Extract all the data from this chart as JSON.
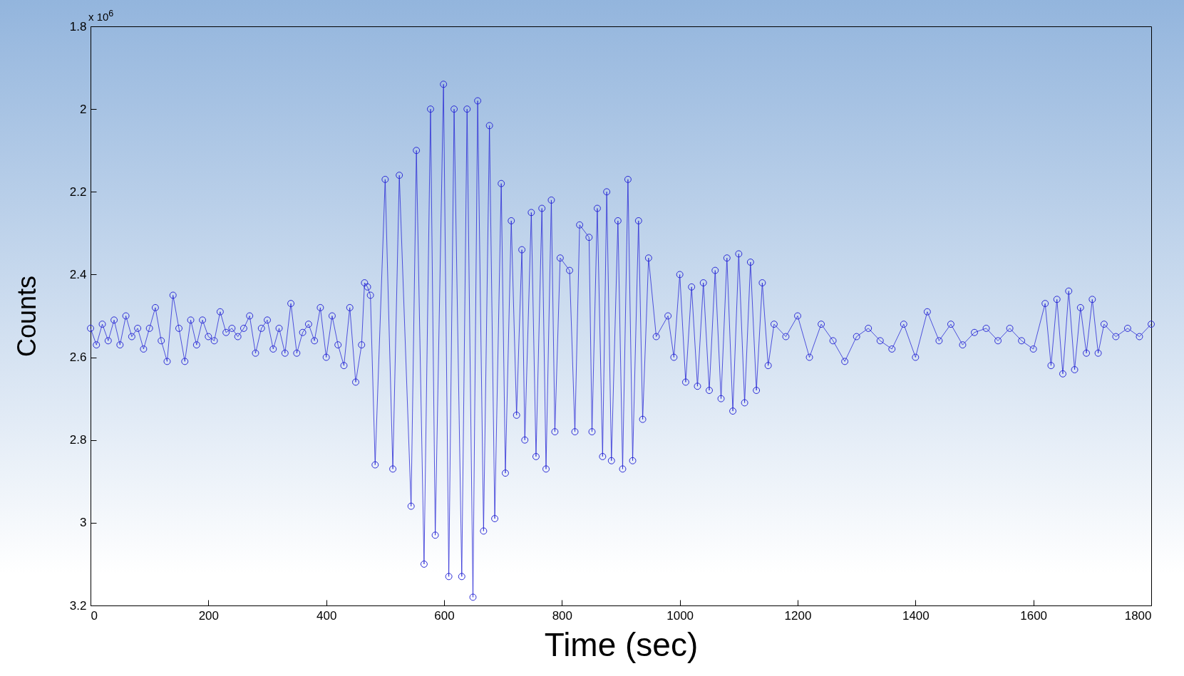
{
  "chart_data": {
    "type": "line",
    "xlabel": "Time (sec)",
    "ylabel": "Counts",
    "annotations": [
      "x 10$^{6}$"
    ],
    "xlim": [
      0,
      1800
    ],
    "xticks": [
      0,
      200,
      400,
      600,
      800,
      1000,
      1200,
      1400,
      1600,
      1800
    ],
    "ylim": [
      3.2,
      1.8
    ],
    "yticks": [
      1.8,
      2,
      2.2,
      2.4,
      2.6,
      2.8,
      3,
      3.2
    ],
    "grid": false,
    "marker": "circle",
    "x": [
      0,
      10,
      20,
      30,
      40,
      50,
      60,
      70,
      80,
      90,
      100,
      110,
      120,
      130,
      140,
      150,
      160,
      170,
      180,
      190,
      200,
      210,
      220,
      230,
      240,
      250,
      260,
      270,
      280,
      290,
      300,
      310,
      320,
      330,
      340,
      350,
      360,
      370,
      380,
      390,
      400,
      410,
      420,
      430,
      440,
      450,
      460,
      465,
      470,
      475,
      483,
      500,
      513,
      524,
      544,
      553,
      566,
      577,
      585,
      599,
      608,
      617,
      630,
      639,
      649,
      657,
      667,
      677,
      686,
      697,
      704,
      714,
      723,
      732,
      737,
      748,
      756,
      766,
      773,
      782,
      788,
      797,
      813,
      822,
      830,
      846,
      851,
      860,
      869,
      876,
      884,
      895,
      903,
      912,
      920,
      930,
      937,
      947,
      960,
      980,
      990,
      1000,
      1010,
      1020,
      1030,
      1040,
      1050,
      1060,
      1070,
      1080,
      1090,
      1100,
      1110,
      1120,
      1130,
      1140,
      1150,
      1160,
      1180,
      1200,
      1220,
      1240,
      1260,
      1280,
      1300,
      1320,
      1340,
      1360,
      1380,
      1400,
      1420,
      1440,
      1460,
      1480,
      1500,
      1520,
      1540,
      1560,
      1580,
      1600,
      1620,
      1630,
      1640,
      1650,
      1660,
      1670,
      1680,
      1690,
      1700,
      1710,
      1720,
      1740,
      1760,
      1780,
      1800
    ],
    "series": [
      {
        "color": "#2b2bd6",
        "values": [
          2.53,
          2.57,
          2.52,
          2.56,
          2.51,
          2.57,
          2.5,
          2.55,
          2.53,
          2.58,
          2.53,
          2.48,
          2.56,
          2.61,
          2.45,
          2.53,
          2.61,
          2.51,
          2.57,
          2.51,
          2.55,
          2.56,
          2.49,
          2.54,
          2.53,
          2.55,
          2.53,
          2.5,
          2.59,
          2.53,
          2.51,
          2.58,
          2.53,
          2.59,
          2.47,
          2.59,
          2.54,
          2.52,
          2.56,
          2.48,
          2.6,
          2.5,
          2.57,
          2.62,
          2.48,
          2.66,
          2.57,
          2.42,
          2.43,
          2.45,
          2.86,
          2.17,
          2.87,
          2.16,
          2.96,
          2.1,
          3.1,
          2.0,
          3.03,
          1.94,
          3.13,
          2.0,
          3.13,
          2.0,
          3.18,
          1.98,
          3.02,
          2.04,
          2.99,
          2.18,
          2.88,
          2.27,
          2.74,
          2.34,
          2.8,
          2.25,
          2.84,
          2.24,
          2.87,
          2.22,
          2.78,
          2.36,
          2.39,
          2.78,
          2.28,
          2.31,
          2.78,
          2.24,
          2.84,
          2.2,
          2.85,
          2.27,
          2.87,
          2.17,
          2.85,
          2.27,
          2.75,
          2.36,
          2.55,
          2.5,
          2.6,
          2.4,
          2.66,
          2.43,
          2.67,
          2.42,
          2.68,
          2.39,
          2.7,
          2.36,
          2.73,
          2.35,
          2.71,
          2.37,
          2.68,
          2.42,
          2.62,
          2.52,
          2.55,
          2.5,
          2.6,
          2.52,
          2.56,
          2.61,
          2.55,
          2.53,
          2.56,
          2.58,
          2.52,
          2.6,
          2.49,
          2.56,
          2.52,
          2.57,
          2.54,
          2.53,
          2.56,
          2.53,
          2.56,
          2.58,
          2.47,
          2.62,
          2.46,
          2.64,
          2.44,
          2.63,
          2.48,
          2.59,
          2.46,
          2.59,
          2.52,
          2.55,
          2.53,
          2.55,
          2.52
        ]
      }
    ]
  }
}
